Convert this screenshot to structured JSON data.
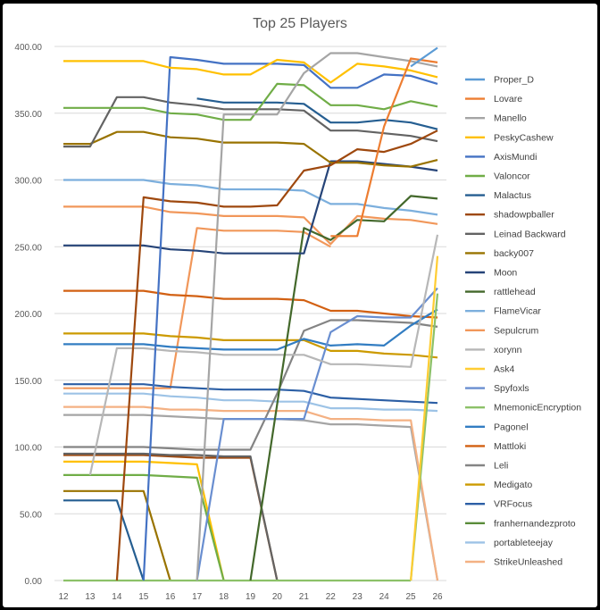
{
  "chart_data": {
    "type": "line",
    "title": "Top 25 Players",
    "xlabel": "",
    "ylabel": "",
    "x": [
      12,
      13,
      14,
      15,
      16,
      17,
      18,
      19,
      20,
      21,
      22,
      23,
      24,
      25,
      26
    ],
    "ylim": [
      0,
      400
    ],
    "yticks": [
      "0.00",
      "50.00",
      "100.00",
      "150.00",
      "200.00",
      "250.00",
      "300.00",
      "350.00",
      "400.00"
    ],
    "grid": "horizontal",
    "legend": "right",
    "series": [
      {
        "name": "Proper_D",
        "color": "#5B9BD5",
        "values": [
          null,
          null,
          null,
          null,
          null,
          null,
          null,
          null,
          null,
          null,
          null,
          null,
          null,
          385,
          399
        ]
      },
      {
        "name": "Lovare",
        "color": "#ED7D31",
        "values": [
          null,
          null,
          null,
          null,
          null,
          null,
          null,
          null,
          null,
          null,
          258,
          258,
          340,
          391,
          388
        ]
      },
      {
        "name": "Manello",
        "color": "#A5A5A5",
        "values": [
          null,
          null,
          null,
          null,
          null,
          0,
          349,
          349,
          349,
          380,
          395,
          395,
          392,
          389,
          385
        ]
      },
      {
        "name": "PeskyCashew",
        "color": "#FFC000",
        "values": [
          389,
          389,
          389,
          389,
          384,
          383,
          379,
          379,
          390,
          388,
          373,
          387,
          385,
          382,
          377
        ]
      },
      {
        "name": "AxisMundi",
        "color": "#4472C4",
        "values": [
          null,
          null,
          null,
          0,
          392,
          390,
          387,
          387,
          387,
          386,
          369,
          369,
          379,
          378,
          372
        ]
      },
      {
        "name": "Valoncor",
        "color": "#70AD47",
        "values": [
          354,
          354,
          354,
          354,
          350,
          349,
          345,
          345,
          372,
          371,
          356,
          356,
          353,
          359,
          355
        ]
      },
      {
        "name": "Malactus",
        "color": "#255E91",
        "values": [
          null,
          null,
          null,
          null,
          null,
          361,
          358,
          358,
          358,
          357,
          343,
          343,
          345,
          343,
          338
        ]
      },
      {
        "name": "shadowpballer",
        "color": "#9E480E",
        "values": [
          null,
          null,
          0,
          287,
          284,
          283,
          280,
          280,
          281,
          307,
          311,
          323,
          321,
          327,
          337
        ]
      },
      {
        "name": "Leinad Backward",
        "color": "#636363",
        "values": [
          325,
          325,
          362,
          362,
          358,
          356,
          353,
          353,
          353,
          352,
          337,
          337,
          335,
          333,
          329
        ]
      },
      {
        "name": "backy007",
        "color": "#997300",
        "values": [
          327,
          327,
          336,
          336,
          332,
          331,
          328,
          328,
          328,
          327,
          313,
          313,
          311,
          310,
          315
        ]
      },
      {
        "name": "Moon",
        "color": "#264478",
        "values": [
          251,
          251,
          251,
          251,
          248,
          247,
          245,
          245,
          245,
          245,
          314,
          314,
          312,
          310,
          307
        ]
      },
      {
        "name": "rattlehead",
        "color": "#43682B",
        "values": [
          null,
          null,
          null,
          null,
          null,
          null,
          null,
          0,
          132,
          264,
          255,
          270,
          269,
          288,
          286
        ]
      },
      {
        "name": "FlameVicar",
        "color": "#7CAFDD",
        "values": [
          300,
          300,
          300,
          300,
          297,
          296,
          293,
          293,
          293,
          292,
          282,
          282,
          279,
          277,
          274
        ]
      },
      {
        "name": "Sepulcrum",
        "color": "#F1975A",
        "values": [
          280,
          280,
          280,
          280,
          276,
          275,
          273,
          273,
          273,
          272,
          252,
          273,
          271,
          270,
          267
        ]
      },
      {
        "name": "xorynn",
        "color": "#B7B7B7",
        "values": [
          null,
          79,
          174,
          174,
          172,
          171,
          169,
          169,
          169,
          169,
          162,
          162,
          161,
          160,
          259
        ]
      },
      {
        "name": "Ask4",
        "color": "#FFCD33",
        "values": [
          null,
          null,
          null,
          null,
          null,
          null,
          null,
          null,
          null,
          null,
          null,
          null,
          null,
          0,
          243
        ]
      },
      {
        "name": "Spyfoxls",
        "color": "#698ED0",
        "values": [
          null,
          null,
          null,
          null,
          null,
          0,
          121,
          121,
          121,
          121,
          186,
          198,
          197,
          197,
          219
        ]
      },
      {
        "name": "MnemonicEncryption",
        "color": "#8CC168",
        "values": [
          null,
          null,
          null,
          null,
          null,
          null,
          null,
          null,
          null,
          null,
          null,
          null,
          null,
          0,
          215
        ]
      },
      {
        "name": "Pagonel",
        "color": "#327DC2",
        "values": [
          177,
          177,
          177,
          177,
          175,
          174,
          173,
          173,
          173,
          181,
          176,
          177,
          176,
          191,
          203
        ]
      },
      {
        "name": "Mattloki",
        "color": "#D26012",
        "values": [
          217,
          217,
          217,
          217,
          214,
          213,
          211,
          211,
          211,
          210,
          202,
          202,
          200,
          198,
          197
        ]
      },
      {
        "name": "Leli",
        "color": "#848484",
        "values": [
          100,
          100,
          100,
          100,
          99,
          98,
          98,
          98,
          140,
          187,
          195,
          195,
          194,
          193,
          190
        ]
      },
      {
        "name": "Medigato",
        "color": "#CC9A00",
        "values": [
          185,
          185,
          185,
          185,
          183,
          182,
          180,
          180,
          180,
          180,
          172,
          172,
          170,
          169,
          167
        ]
      },
      {
        "name": "VRFocus",
        "color": "#2C5FA5",
        "values": [
          147,
          147,
          147,
          147,
          145,
          144,
          143,
          143,
          143,
          142,
          137,
          136,
          135,
          134,
          133
        ]
      },
      {
        "name": "franhernandezproto",
        "color": "#5A8C3A",
        "values": [
          null,
          null,
          null,
          null,
          null,
          null,
          null,
          null,
          null,
          null,
          null,
          null,
          null,
          null,
          null
        ]
      },
      {
        "name": "portableteejay",
        "color": "#9DC3E6",
        "values": [
          140,
          140,
          140,
          140,
          138,
          137,
          135,
          135,
          134,
          134,
          129,
          129,
          128,
          128,
          127
        ]
      },
      {
        "name": "StrikeUnleashed",
        "color": "#F4B183",
        "values": [
          130,
          130,
          130,
          130,
          128,
          128,
          127,
          127,
          127,
          127,
          121,
          121,
          120,
          120,
          0
        ]
      }
    ],
    "other_lines": [
      {
        "color": "#9E480E",
        "values": [
          94,
          94,
          94,
          94,
          93,
          92,
          92,
          92,
          0,
          null,
          null,
          null,
          null,
          null,
          null
        ]
      },
      {
        "color": "#636363",
        "values": [
          95,
          95,
          95,
          95,
          94,
          94,
          93,
          93,
          0,
          null,
          null,
          null,
          null,
          null,
          null
        ]
      },
      {
        "color": "#FFC000",
        "values": [
          89,
          89,
          89,
          89,
          88,
          87,
          0,
          null,
          null,
          null,
          null,
          null,
          null,
          null,
          null
        ]
      },
      {
        "color": "#70AD47",
        "values": [
          79,
          79,
          79,
          79,
          78,
          77,
          0,
          null,
          null,
          null,
          null,
          null,
          null,
          null,
          null
        ]
      },
      {
        "color": "#997300",
        "values": [
          67,
          67,
          67,
          67,
          0,
          null,
          null,
          null,
          null,
          null,
          null,
          null,
          null,
          null,
          null
        ]
      },
      {
        "color": "#255E91",
        "values": [
          60,
          60,
          60,
          0,
          null,
          null,
          null,
          null,
          null,
          null,
          null,
          null,
          null,
          null,
          null
        ]
      },
      {
        "color": "#F1975A",
        "values": [
          144,
          144,
          144,
          144,
          144,
          264,
          262,
          262,
          262,
          261,
          250,
          null,
          null,
          null,
          null
        ]
      },
      {
        "color": "#A5A5A5",
        "values": [
          124,
          124,
          124,
          124,
          123,
          122,
          121,
          121,
          121,
          120,
          117,
          117,
          116,
          115,
          0
        ]
      },
      {
        "color": "#8CC168",
        "values": [
          0,
          0,
          0,
          0,
          0,
          0,
          0,
          0,
          0,
          0,
          0,
          0,
          0,
          0,
          null
        ]
      }
    ]
  }
}
